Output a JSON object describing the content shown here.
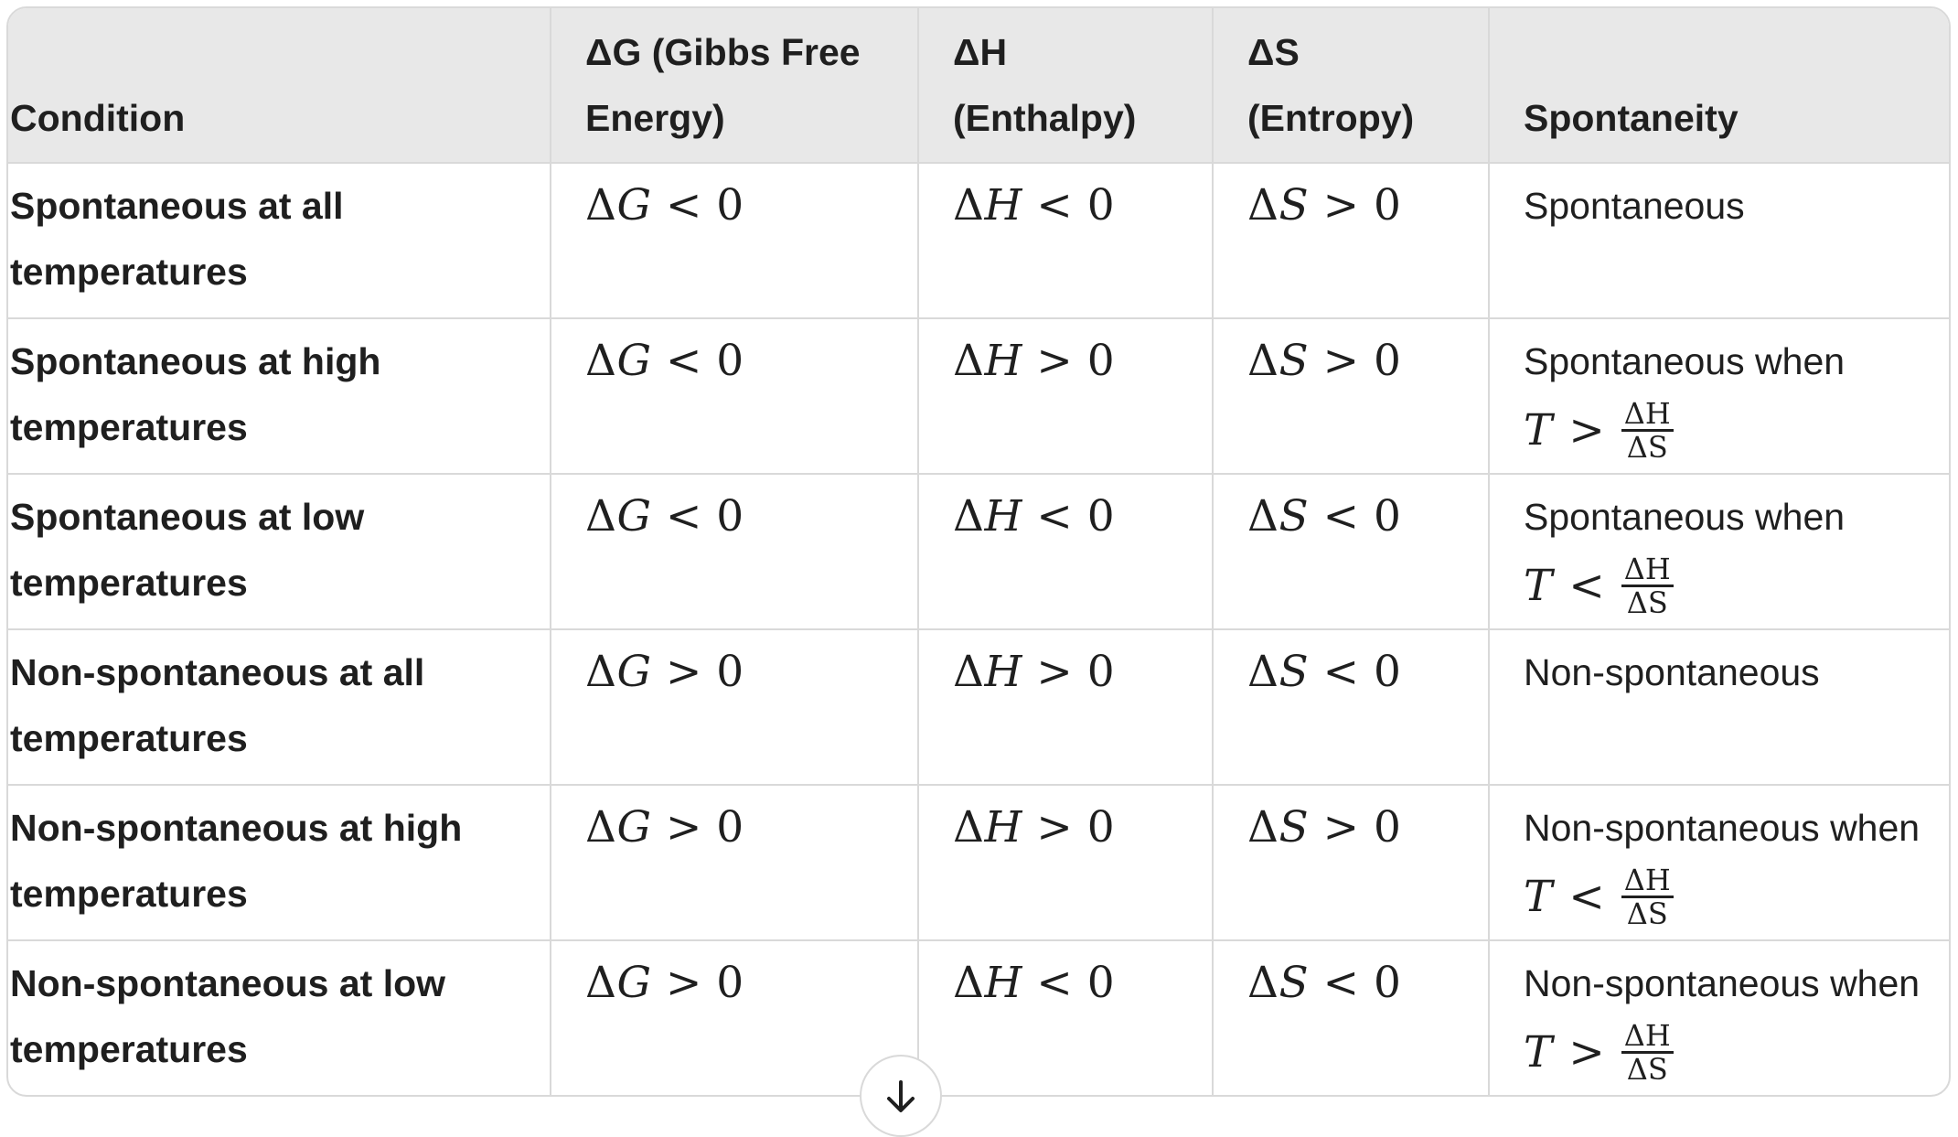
{
  "table": {
    "headers": [
      "Condition",
      "ΔG (Gibbs Free Energy)",
      "ΔH (Enthalpy)",
      "ΔS (Entropy)",
      "Spontaneity"
    ],
    "rows": [
      {
        "condition": "Spontaneous at all temperatures",
        "dG": {
          "sym": "Δ",
          "var": "G",
          "op": "<",
          "val": "0"
        },
        "dH": {
          "sym": "Δ",
          "var": "H",
          "op": "<",
          "val": "0"
        },
        "dS": {
          "sym": "Δ",
          "var": "S",
          "op": ">",
          "val": "0"
        },
        "spontaneity": {
          "text": "Spontaneous",
          "formula": null
        }
      },
      {
        "condition": "Spontaneous at high temperatures",
        "dG": {
          "sym": "Δ",
          "var": "G",
          "op": "<",
          "val": "0"
        },
        "dH": {
          "sym": "Δ",
          "var": "H",
          "op": ">",
          "val": "0"
        },
        "dS": {
          "sym": "Δ",
          "var": "S",
          "op": ">",
          "val": "0"
        },
        "spontaneity": {
          "text": "Spontaneous when",
          "formula": {
            "var": "T",
            "op": ">",
            "num": "ΔH",
            "den": "ΔS"
          }
        }
      },
      {
        "condition": "Spontaneous at low temperatures",
        "dG": {
          "sym": "Δ",
          "var": "G",
          "op": "<",
          "val": "0"
        },
        "dH": {
          "sym": "Δ",
          "var": "H",
          "op": "<",
          "val": "0"
        },
        "dS": {
          "sym": "Δ",
          "var": "S",
          "op": "<",
          "val": "0"
        },
        "spontaneity": {
          "text": "Spontaneous when",
          "formula": {
            "var": "T",
            "op": "<",
            "num": "ΔH",
            "den": "ΔS"
          }
        }
      },
      {
        "condition": "Non-spontaneous at all temperatures",
        "dG": {
          "sym": "Δ",
          "var": "G",
          "op": ">",
          "val": "0"
        },
        "dH": {
          "sym": "Δ",
          "var": "H",
          "op": ">",
          "val": "0"
        },
        "dS": {
          "sym": "Δ",
          "var": "S",
          "op": "<",
          "val": "0"
        },
        "spontaneity": {
          "text": "Non-spontaneous",
          "formula": null
        }
      },
      {
        "condition": "Non-spontaneous at high temperatures",
        "dG": {
          "sym": "Δ",
          "var": "G",
          "op": ">",
          "val": "0"
        },
        "dH": {
          "sym": "Δ",
          "var": "H",
          "op": ">",
          "val": "0"
        },
        "dS": {
          "sym": "Δ",
          "var": "S",
          "op": ">",
          "val": "0"
        },
        "spontaneity": {
          "text": "Non-spontaneous when",
          "formula": {
            "var": "T",
            "op": "<",
            "num": "ΔH",
            "den": "ΔS"
          }
        }
      },
      {
        "condition": "Non-spontaneous at low temperatures",
        "dG": {
          "sym": "Δ",
          "var": "G",
          "op": ">",
          "val": "0"
        },
        "dH": {
          "sym": "Δ",
          "var": "H",
          "op": "<",
          "val": "0"
        },
        "dS": {
          "sym": "Δ",
          "var": "S",
          "op": "<",
          "val": "0"
        },
        "spontaneity": {
          "text": "Non-spontaneous when",
          "formula": {
            "var": "T",
            "op": ">",
            "num": "ΔH",
            "den": "ΔS"
          }
        }
      }
    ]
  },
  "scroll_button": {
    "icon": "arrow-down-icon"
  },
  "colors": {
    "header_bg": "#e8e8e8",
    "border": "#d9d9d9",
    "text": "#1f1f1f"
  }
}
